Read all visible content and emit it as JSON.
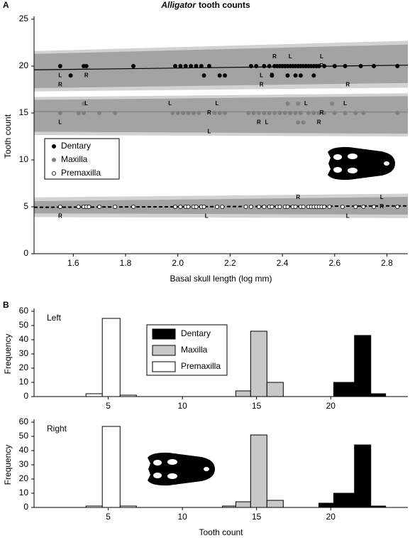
{
  "chart_data": [
    {
      "type": "scatter",
      "panel_label": "A",
      "title_genus": "Alligator",
      "title": "tooth counts",
      "xlabel": "Basal skull length (log mm)",
      "ylabel": "Tooth count",
      "xlim": [
        1.45,
        2.88
      ],
      "ylim": [
        0,
        25
      ],
      "xticks": [
        1.6,
        1.8,
        {
          "value": 2,
          "label": "2.0"
        },
        2.2,
        2.4,
        2.6,
        2.8
      ],
      "yticks": [
        0,
        5,
        10,
        15,
        20,
        25
      ],
      "band_colors": [
        "#d2d2d2",
        "#a3a3a3"
      ],
      "series": [
        {
          "name": "Dentary",
          "color": "#000000",
          "marker_fill": "#000000",
          "line_style": "solid",
          "x": [
            1.55,
            1.64,
            1.65,
            1.83,
            1.99,
            2.01,
            2.03,
            2.05,
            2.07,
            2.09,
            2.12,
            2.28,
            2.3,
            2.33,
            2.35,
            2.37,
            2.38,
            2.39,
            2.4,
            2.41,
            2.42,
            2.43,
            2.44,
            2.45,
            2.46,
            2.47,
            2.48,
            2.49,
            2.5,
            2.51,
            2.52,
            2.53,
            2.54,
            2.56,
            2.6,
            2.64,
            2.7,
            2.75,
            2.84,
            1.59,
            2.1,
            2.16,
            2.18,
            2.36,
            2.42,
            2.45,
            2.47,
            2.52
          ],
          "y": [
            20,
            20,
            20,
            20,
            20,
            20,
            20,
            20,
            20,
            20,
            20,
            20,
            20,
            20,
            20,
            20,
            20,
            20,
            20,
            20,
            20,
            20,
            20,
            20,
            20,
            20,
            20,
            20,
            20,
            20,
            20,
            20,
            20,
            20,
            20,
            20,
            20,
            20,
            20,
            19,
            19,
            19,
            19,
            19,
            19,
            19,
            19,
            19
          ],
          "side_labels": [
            {
              "label": "L",
              "x": 1.55,
              "y": 19
            },
            {
              "label": "R",
              "x": 1.65,
              "y": 19
            },
            {
              "label": "R",
              "x": 1.55,
              "y": 18
            },
            {
              "label": "R",
              "x": 2.37,
              "y": 21
            },
            {
              "label": "L",
              "x": 2.43,
              "y": 21
            },
            {
              "label": "L",
              "x": 2.55,
              "y": 21
            },
            {
              "label": "L",
              "x": 2.32,
              "y": 19
            },
            {
              "label": "R",
              "x": 2.36,
              "y": 19
            },
            {
              "label": "R",
              "x": 2.32,
              "y": 18
            },
            {
              "label": "R",
              "x": 2.55,
              "y": 20
            },
            {
              "label": "R",
              "x": 2.65,
              "y": 18
            }
          ],
          "fit_line": [
            19.6,
            20.1
          ],
          "band_outer_low": [
            17.3,
            17.7
          ],
          "band_outer_high": [
            21.6,
            22.7
          ],
          "band_inner_low": [
            17.65,
            18.2
          ],
          "band_inner_high": [
            21.3,
            22.3
          ]
        },
        {
          "name": "Maxilla",
          "color": "#808080",
          "marker_fill": "#808080",
          "line_style": "solid",
          "x": [
            1.55,
            1.62,
            1.64,
            1.7,
            1.76,
            1.98,
            2.0,
            2.02,
            2.04,
            2.06,
            2.08,
            2.14,
            2.16,
            2.18,
            2.27,
            2.29,
            2.31,
            2.33,
            2.35,
            2.37,
            2.39,
            2.41,
            2.43,
            2.45,
            2.47,
            2.5,
            2.52,
            2.54,
            2.56,
            2.6,
            2.64,
            2.68,
            2.71,
            2.84,
            1.64,
            2.42,
            2.46,
            2.59,
            2.46,
            2.48
          ],
          "y": [
            15,
            15,
            15,
            15,
            15,
            15,
            15,
            15,
            15,
            15,
            15,
            15,
            15,
            15,
            15,
            15,
            15,
            15,
            15,
            15,
            15,
            15,
            15,
            15,
            15,
            15,
            15,
            15,
            15,
            15,
            15,
            15,
            15,
            15,
            16,
            16,
            16,
            16,
            14,
            14
          ],
          "side_labels": [
            {
              "label": "L",
              "x": 1.65,
              "y": 16
            },
            {
              "label": "L",
              "x": 1.97,
              "y": 16
            },
            {
              "label": "L",
              "x": 2.15,
              "y": 16
            },
            {
              "label": "L",
              "x": 2.49,
              "y": 16
            },
            {
              "label": "L",
              "x": 2.64,
              "y": 16
            },
            {
              "label": "L",
              "x": 1.55,
              "y": 14
            },
            {
              "label": "R",
              "x": 2.12,
              "y": 15
            },
            {
              "label": "R",
              "x": 2.55,
              "y": 15
            },
            {
              "label": "L",
              "x": 2.12,
              "y": 13
            },
            {
              "label": "R",
              "x": 2.31,
              "y": 14
            },
            {
              "label": "L",
              "x": 2.34,
              "y": 14
            },
            {
              "label": "R",
              "x": 2.54,
              "y": 14
            }
          ],
          "fit_line": [
            15.15,
            15.1
          ],
          "band_outer_low": [
            12.65,
            12.5
          ],
          "band_outer_high": [
            16.7,
            17.1
          ],
          "band_inner_low": [
            13.0,
            12.8
          ],
          "band_inner_high": [
            16.4,
            16.8
          ]
        },
        {
          "name": "Premaxilla",
          "color": "#000000",
          "marker_fill": "#ffffff",
          "line_style": "dashed",
          "x": [
            1.55,
            1.62,
            1.64,
            1.65,
            1.66,
            1.7,
            1.76,
            1.83,
            1.99,
            2.01,
            2.03,
            2.04,
            2.06,
            2.07,
            2.09,
            2.1,
            2.15,
            2.17,
            2.26,
            2.28,
            2.31,
            2.33,
            2.35,
            2.36,
            2.38,
            2.39,
            2.41,
            2.42,
            2.44,
            2.45,
            2.47,
            2.48,
            2.5,
            2.51,
            2.52,
            2.53,
            2.54,
            2.55,
            2.56,
            2.58,
            2.63,
            2.68,
            2.71,
            2.75,
            2.84
          ],
          "y": [
            5,
            5,
            5,
            5,
            5,
            5,
            5,
            5,
            5,
            5,
            5,
            5,
            5,
            5,
            5,
            5,
            5,
            5,
            5,
            5,
            5,
            5,
            5,
            5,
            5,
            5,
            5,
            5,
            5,
            5,
            5,
            5,
            5,
            5,
            5,
            5,
            5,
            5,
            5,
            5,
            5,
            5,
            5,
            5,
            5
          ],
          "side_labels": [
            {
              "label": "R",
              "x": 2.46,
              "y": 6
            },
            {
              "label": "L",
              "x": 2.78,
              "y": 6
            },
            {
              "label": "R",
              "x": 1.55,
              "y": 4
            },
            {
              "label": "L",
              "x": 2.11,
              "y": 4
            },
            {
              "label": "L",
              "x": 2.65,
              "y": 4
            },
            {
              "label": "R",
              "x": 2.78,
              "y": 5
            }
          ],
          "fit_line": [
            4.95,
            5.1
          ],
          "band_outer_low": [
            3.9,
            3.8
          ],
          "band_outer_high": [
            6.0,
            6.4
          ],
          "band_inner_low": [
            4.3,
            4.17
          ],
          "band_inner_high": [
            5.6,
            6.06
          ]
        }
      ]
    },
    {
      "type": "histogram",
      "panel_label": "B",
      "side_label": "Left",
      "ylabel": "Frequency",
      "xlim": [
        0,
        25.2
      ],
      "ylim": [
        0,
        60
      ],
      "xticks": [
        5,
        10,
        15,
        20
      ],
      "yticks": [
        0,
        10,
        20,
        30,
        40,
        50,
        60
      ],
      "series": [
        {
          "name": "Dentary",
          "color": "#000000",
          "bins": [
            20.2,
            21.6,
            22.7,
            23.7
          ],
          "values": [
            10,
            43,
            2
          ]
        },
        {
          "name": "Maxilla",
          "color": "#c8c8c8",
          "bins": [
            13.6,
            14.6,
            15.7,
            16.8
          ],
          "values": [
            4,
            46,
            10
          ]
        },
        {
          "name": "Premaxilla",
          "color": "#ffffff",
          "bins": [
            3.5,
            4.6,
            5.8,
            6.9
          ],
          "values": [
            2,
            55,
            1
          ]
        }
      ]
    },
    {
      "type": "histogram",
      "side_label": "Right",
      "ylabel": "Frequency",
      "xlabel": "Tooth count",
      "xlim": [
        0,
        25.2
      ],
      "ylim": [
        0,
        60
      ],
      "xticks": [
        5,
        10,
        15,
        20
      ],
      "yticks": [
        0,
        10,
        20,
        30,
        40,
        50,
        60
      ],
      "series": [
        {
          "color": "#000000",
          "bins": [
            19.2,
            20.2,
            21.6,
            22.7,
            23.7
          ],
          "values": [
            3,
            10,
            44,
            1
          ]
        },
        {
          "color": "#c8c8c8",
          "bins": [
            12.7,
            13.6,
            14.6,
            15.7,
            16.8
          ],
          "values": [
            1,
            4,
            51,
            5
          ]
        },
        {
          "color": "#ffffff",
          "bins": [
            3.5,
            4.6,
            5.8,
            6.9
          ],
          "values": [
            1,
            57,
            1
          ]
        }
      ]
    }
  ]
}
